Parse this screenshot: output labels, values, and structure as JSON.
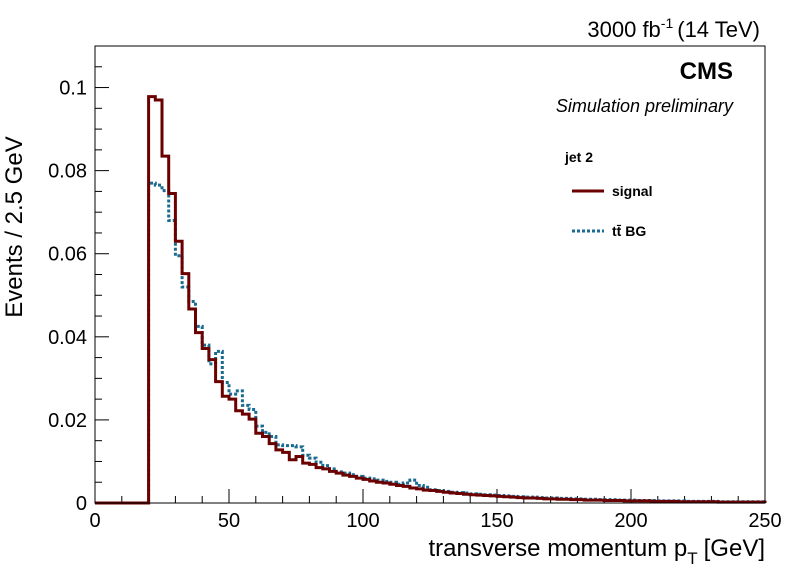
{
  "chart_data": {
    "type": "histogram-step",
    "header": {
      "lumi_value": "3000 fb",
      "lumi_exponent": "-1",
      "energy": "(14 TeV)",
      "experiment": "CMS",
      "status": "Simulation preliminary"
    },
    "xlabel_main": "transverse momentum p",
    "xlabel_sub": "T",
    "xlabel_unit": "[GeV]",
    "ylabel": "Events / 2.5 GeV",
    "xlim": [
      0,
      250
    ],
    "ylim": [
      0,
      0.11
    ],
    "bin_width": 2.5,
    "x_ticks": [
      0,
      50,
      100,
      150,
      200,
      250
    ],
    "x_tick_labels": [
      "0",
      "50",
      "100",
      "150",
      "200",
      "250"
    ],
    "y_ticks": [
      0,
      0.02,
      0.04,
      0.06,
      0.08,
      0.1
    ],
    "y_tick_labels": [
      "0",
      "0.02",
      "0.04",
      "0.06",
      "0.08",
      "0.1"
    ],
    "legend": {
      "title": "jet 2",
      "entries": [
        {
          "label": "signal",
          "style": "solid"
        },
        {
          "label": "tt̄ BG",
          "style": "dotted"
        }
      ]
    },
    "series": [
      {
        "name": "signal",
        "color": "#6b0000",
        "style": "solid",
        "values": [
          0,
          0,
          0,
          0,
          0,
          0,
          0,
          0,
          0.0978,
          0.097,
          0.0835,
          0.0745,
          0.063,
          0.0552,
          0.0467,
          0.041,
          0.0372,
          0.0345,
          0.0292,
          0.0257,
          0.025,
          0.0222,
          0.0214,
          0.0202,
          0.0168,
          0.016,
          0.0143,
          0.0128,
          0.0122,
          0.0104,
          0.0112,
          0.0096,
          0.0093,
          0.0085,
          0.0082,
          0.0076,
          0.0072,
          0.0067,
          0.0064,
          0.006,
          0.0057,
          0.0053,
          0.005,
          0.0048,
          0.0045,
          0.0042,
          0.004,
          0.0036,
          0.0034,
          0.0031,
          0.003,
          0.0028,
          0.0026,
          0.0024,
          0.0023,
          0.0021,
          0.002,
          0.0019,
          0.0018,
          0.0017,
          0.0016,
          0.0015,
          0.0014,
          0.0013,
          0.0012,
          0.0012,
          0.0011,
          0.001,
          0.001,
          0.0009,
          0.0009,
          0.0008,
          0.0008,
          0.0007,
          0.0007,
          0.0007,
          0.0006,
          0.0006,
          0.0006,
          0.0005,
          0.0005,
          0.0005,
          0.0005,
          0.0004,
          0.0004,
          0.0004,
          0.0004,
          0.0003,
          0.0003,
          0.0003,
          0.0003,
          0.0003,
          0.0003,
          0.0002,
          0.0002,
          0.0002,
          0.0002,
          0.0002,
          0.0002,
          0.0002
        ]
      },
      {
        "name": "tt̄ BG",
        "color": "#1a6b8f",
        "style": "dotted",
        "values": [
          0,
          0,
          0,
          0,
          0,
          0,
          0,
          0,
          0.077,
          0.0765,
          0.0752,
          0.068,
          0.0595,
          0.052,
          0.0485,
          0.0425,
          0.038,
          0.0335,
          0.0365,
          0.029,
          0.0262,
          0.027,
          0.0235,
          0.0225,
          0.0185,
          0.017,
          0.016,
          0.014,
          0.0138,
          0.0138,
          0.0135,
          0.0115,
          0.0108,
          0.0098,
          0.009,
          0.0082,
          0.0075,
          0.0072,
          0.0068,
          0.0064,
          0.006,
          0.0058,
          0.0055,
          0.0052,
          0.005,
          0.0045,
          0.0048,
          0.0055,
          0.0042,
          0.0038,
          0.0032,
          0.003,
          0.0028,
          0.0026,
          0.0025,
          0.0024,
          0.0022,
          0.0021,
          0.002,
          0.0019,
          0.0018,
          0.0017,
          0.0016,
          0.0015,
          0.0014,
          0.0014,
          0.0013,
          0.0012,
          0.0012,
          0.0011,
          0.0011,
          0.001,
          0.001,
          0.0009,
          0.0009,
          0.0008,
          0.0008,
          0.0008,
          0.0007,
          0.0007,
          0.0007,
          0.0006,
          0.0006,
          0.0006,
          0.0005,
          0.0005,
          0.0005,
          0.0005,
          0.0004,
          0.0004,
          0.0004,
          0.0004,
          0.0004,
          0.0003,
          0.0003,
          0.0003,
          0.0003,
          0.0003,
          0.0003,
          0.0003
        ]
      }
    ]
  }
}
